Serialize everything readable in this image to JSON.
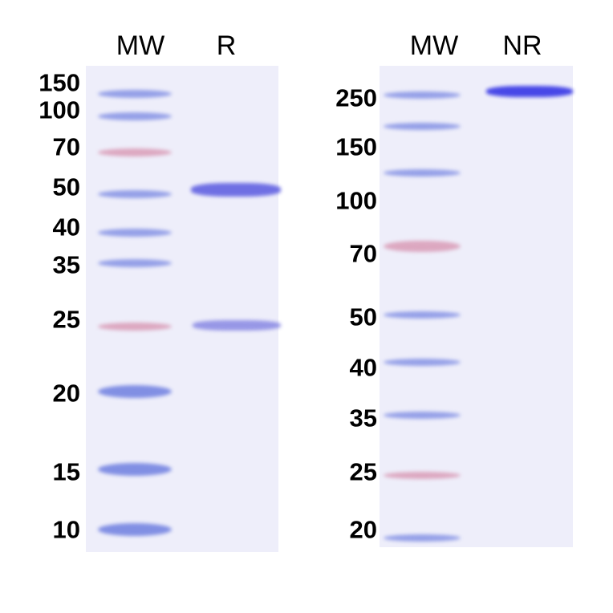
{
  "gels": [
    {
      "lanes": [
        "MW",
        "R"
      ],
      "markers": [
        "150",
        "100",
        "70",
        "50",
        "40",
        "35",
        "25",
        "20",
        "15",
        "10"
      ],
      "sample_bands": [
        "50",
        "25"
      ]
    },
    {
      "lanes": [
        "MW",
        "NR"
      ],
      "markers": [
        "250",
        "150",
        "100",
        "70",
        "50",
        "40",
        "35",
        "25",
        "20"
      ],
      "sample_bands": [
        "250"
      ]
    }
  ],
  "colors": {
    "blue_band": "#6f7fe0",
    "pink_band": "#d58aa8",
    "sample_band": "#5a5ae0",
    "gel_background": "#eeeefa"
  }
}
